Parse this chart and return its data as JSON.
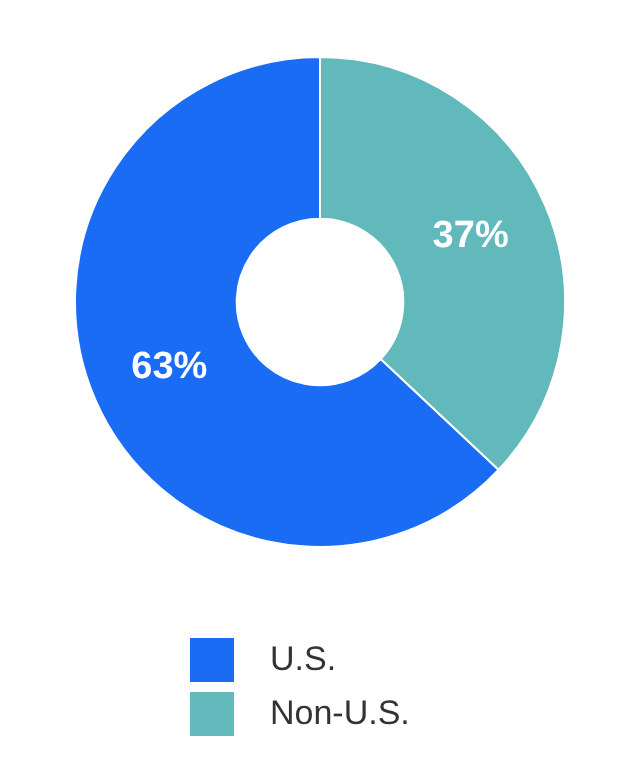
{
  "chart_data": {
    "type": "donut",
    "categories": [
      "U.S.",
      "Non-U.S."
    ],
    "values": [
      63,
      37
    ],
    "colors": [
      "#1a6cf5",
      "#62b9bc"
    ],
    "value_labels": [
      "63%",
      "37%"
    ],
    "legend": "bottom"
  }
}
